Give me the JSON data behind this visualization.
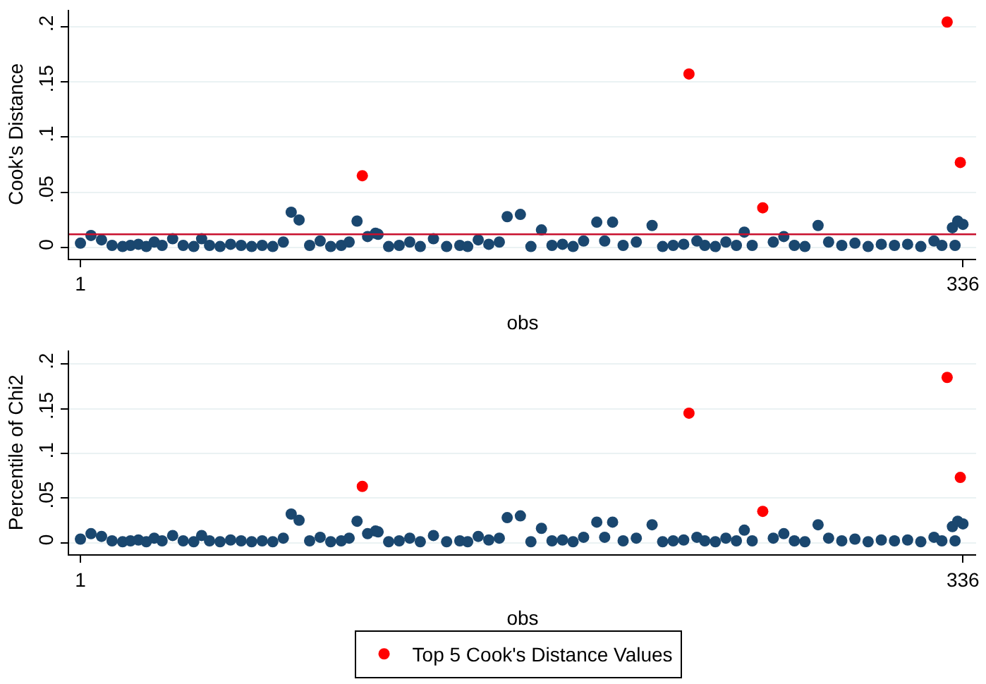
{
  "chart_data": [
    {
      "type": "scatter",
      "ylabel": "Cook's Distance",
      "xlabel": "obs",
      "xlim": [
        -3.3,
        341
      ],
      "xticks": [
        1,
        336
      ],
      "ylim": [
        -0.01,
        0.215
      ],
      "yticks": [
        {
          "value": 0,
          "label": "0"
        },
        {
          "value": 0.05,
          "label": ".05"
        },
        {
          "value": 0.1,
          "label": ".1"
        },
        {
          "value": 0.15,
          "label": ".15"
        },
        {
          "value": 0.2,
          "label": ".2"
        }
      ],
      "grid": "y",
      "marker": "circle",
      "legend": false,
      "series": [
        {
          "color": "#1a476f",
          "x": [
            1,
            5,
            9,
            13,
            17,
            20,
            23,
            26,
            29,
            32,
            36,
            40,
            44,
            47,
            50,
            54,
            58,
            62,
            66,
            70,
            74,
            78,
            81,
            84,
            88,
            92,
            96,
            100,
            103,
            106,
            110,
            113,
            114,
            118,
            122,
            126,
            130,
            135,
            140,
            145,
            148,
            152,
            156,
            160,
            163,
            168,
            172,
            176,
            180,
            184,
            188,
            192,
            197,
            200,
            203,
            207,
            212,
            218,
            222,
            226,
            230,
            235,
            238,
            242,
            246,
            250,
            253,
            256,
            264,
            268,
            272,
            276,
            281,
            285,
            290,
            295,
            300,
            305,
            310,
            315,
            320,
            325,
            328,
            332,
            333,
            334,
            336
          ],
          "values": [
            0.004,
            0.011,
            0.007,
            0.002,
            0.001,
            0.002,
            0.003,
            0.001,
            0.005,
            0.002,
            0.008,
            0.002,
            0.001,
            0.008,
            0.002,
            0.001,
            0.003,
            0.002,
            0.001,
            0.002,
            0.001,
            0.005,
            0.032,
            0.025,
            0.002,
            0.006,
            0.001,
            0.002,
            0.005,
            0.024,
            0.01,
            0.013,
            0.012,
            0.001,
            0.002,
            0.005,
            0.001,
            0.008,
            0.001,
            0.002,
            0.001,
            0.007,
            0.003,
            0.005,
            0.028,
            0.03,
            0.001,
            0.016,
            0.002,
            0.003,
            0.001,
            0.006,
            0.023,
            0.006,
            0.023,
            0.002,
            0.005,
            0.02,
            0.001,
            0.002,
            0.003,
            0.006,
            0.002,
            0.001,
            0.005,
            0.002,
            0.014,
            0.002,
            0.005,
            0.01,
            0.002,
            0.001,
            0.02,
            0.005,
            0.002,
            0.004,
            0.001,
            0.003,
            0.002,
            0.003,
            0.001,
            0.006,
            0.002,
            0.018,
            0.002,
            0.024,
            0.021
          ]
        },
        {
          "color": "#ff0000",
          "x": [
            108,
            232,
            260,
            330,
            335
          ],
          "values": [
            0.065,
            0.157,
            0.036,
            0.204,
            0.077
          ]
        }
      ],
      "ref_lines": [
        {
          "axis": "y",
          "value": 0.012,
          "color": "#c8102e"
        }
      ]
    },
    {
      "type": "scatter",
      "ylabel": "Percentile of Chi2",
      "xlabel": "obs",
      "xlim": [
        -3.3,
        341
      ],
      "xticks": [
        1,
        336
      ],
      "ylim": [
        -0.013,
        0.215
      ],
      "yticks": [
        {
          "value": 0,
          "label": "0"
        },
        {
          "value": 0.05,
          "label": ".05"
        },
        {
          "value": 0.1,
          "label": ".1"
        },
        {
          "value": 0.15,
          "label": ".15"
        },
        {
          "value": 0.2,
          "label": ".2"
        }
      ],
      "grid": "y",
      "marker": "circle",
      "legend": "bottom",
      "series": [
        {
          "color": "#1a476f",
          "x": [
            1,
            5,
            9,
            13,
            17,
            20,
            23,
            26,
            29,
            32,
            36,
            40,
            44,
            47,
            50,
            54,
            58,
            62,
            66,
            70,
            74,
            78,
            81,
            84,
            88,
            92,
            96,
            100,
            103,
            106,
            110,
            113,
            114,
            118,
            122,
            126,
            130,
            135,
            140,
            145,
            148,
            152,
            156,
            160,
            163,
            168,
            172,
            176,
            180,
            184,
            188,
            192,
            197,
            200,
            203,
            207,
            212,
            218,
            222,
            226,
            230,
            235,
            238,
            242,
            246,
            250,
            253,
            256,
            264,
            268,
            272,
            276,
            281,
            285,
            290,
            295,
            300,
            305,
            310,
            315,
            320,
            325,
            328,
            332,
            333,
            334,
            336
          ],
          "values": [
            0.004,
            0.01,
            0.007,
            0.002,
            0.001,
            0.002,
            0.003,
            0.001,
            0.005,
            0.002,
            0.008,
            0.002,
            0.001,
            0.008,
            0.002,
            0.001,
            0.003,
            0.002,
            0.001,
            0.002,
            0.001,
            0.005,
            0.032,
            0.025,
            0.002,
            0.006,
            0.001,
            0.002,
            0.005,
            0.024,
            0.01,
            0.013,
            0.012,
            0.001,
            0.002,
            0.005,
            0.001,
            0.008,
            0.001,
            0.002,
            0.001,
            0.007,
            0.003,
            0.005,
            0.028,
            0.03,
            0.001,
            0.016,
            0.002,
            0.003,
            0.001,
            0.006,
            0.023,
            0.006,
            0.023,
            0.002,
            0.005,
            0.02,
            0.001,
            0.002,
            0.003,
            0.006,
            0.002,
            0.001,
            0.005,
            0.002,
            0.014,
            0.002,
            0.005,
            0.01,
            0.002,
            0.001,
            0.02,
            0.005,
            0.002,
            0.004,
            0.001,
            0.003,
            0.002,
            0.003,
            0.001,
            0.006,
            0.002,
            0.018,
            0.002,
            0.024,
            0.021
          ]
        },
        {
          "name": "Top 5 Cook's Distance Values",
          "color": "#ff0000",
          "x": [
            108,
            232,
            260,
            330,
            335
          ],
          "values": [
            0.063,
            0.145,
            0.035,
            0.185,
            0.073
          ]
        }
      ]
    }
  ]
}
